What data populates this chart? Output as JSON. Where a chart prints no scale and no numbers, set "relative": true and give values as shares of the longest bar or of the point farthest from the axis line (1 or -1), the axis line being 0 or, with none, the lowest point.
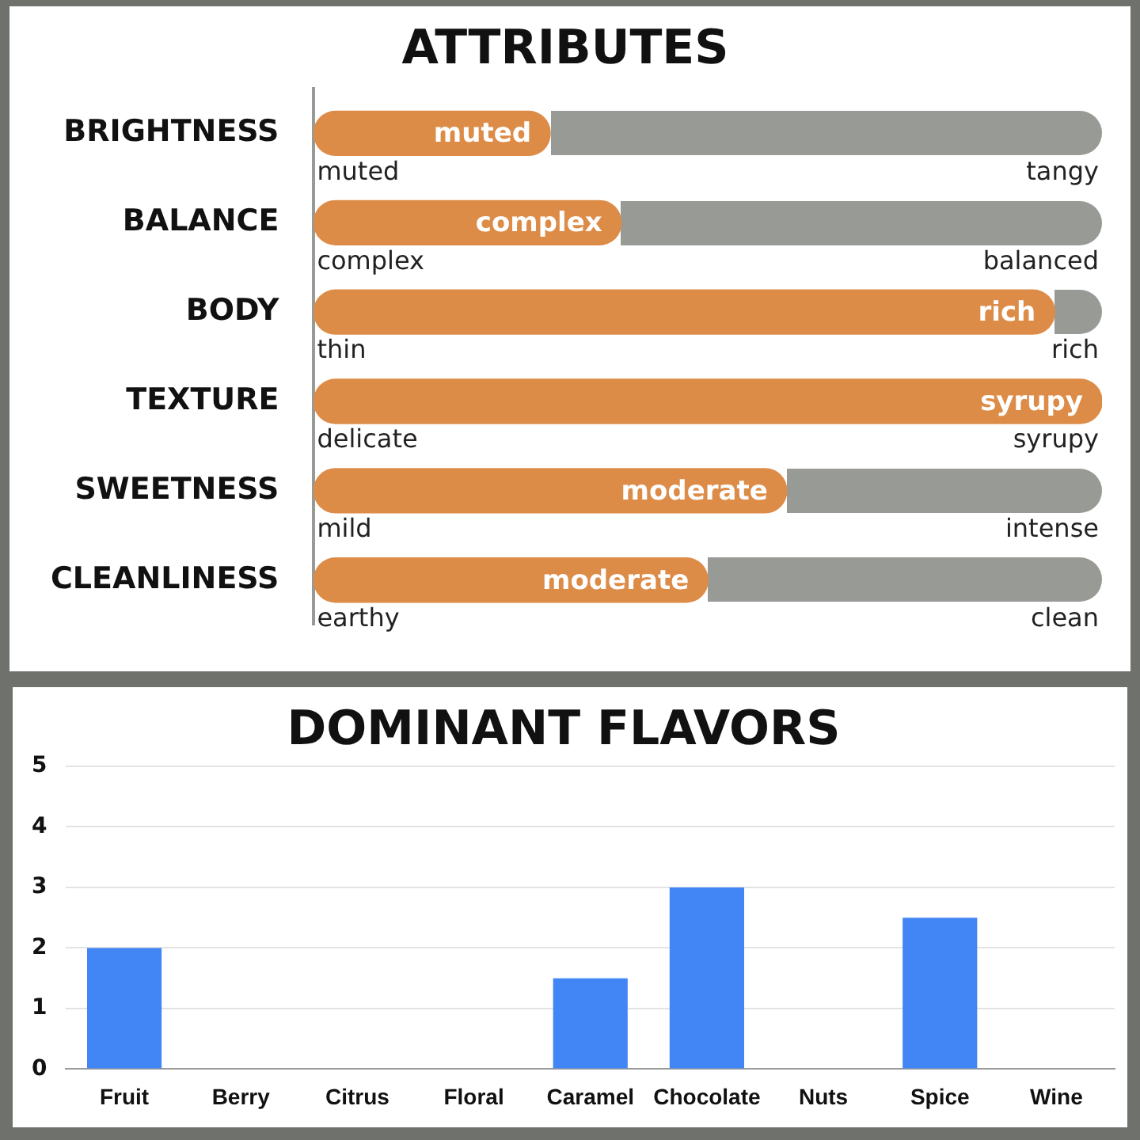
{
  "chart_data": [
    {
      "type": "bar",
      "orientation": "horizontal",
      "relative": true,
      "title": "ATTRIBUTES",
      "categories": [
        "BRIGHTNESS",
        "BALANCE",
        "BODY",
        "TEXTURE",
        "SWEETNESS",
        "CLEANLINESS"
      ],
      "values": [
        0.3,
        0.39,
        0.94,
        1,
        0.6,
        0.5
      ],
      "color": "#dd8c48",
      "annotations": [
        "muted",
        "muted",
        "tangy",
        "complex",
        "complex",
        "balanced",
        "rich",
        "thin",
        "rich",
        "syrupy",
        "delicate",
        "syrupy",
        "moderate",
        "mild",
        "intense",
        "moderate",
        "earthy",
        "clean"
      ]
    },
    {
      "type": "bar",
      "title": "DOMINANT FLAVORS",
      "categories": [
        "Fruit",
        "Berry",
        "Citrus",
        "Floral",
        "Caramel",
        "Chocolate",
        "Nuts",
        "Spice",
        "Wine"
      ],
      "values": [
        2,
        0,
        0,
        0,
        1.5,
        3,
        0,
        2.5,
        0
      ],
      "color": "#4285f4",
      "ylim": [
        0,
        5
      ],
      "yticks": [
        0,
        1,
        2,
        3,
        4,
        5
      ],
      "grid": "y"
    }
  ]
}
